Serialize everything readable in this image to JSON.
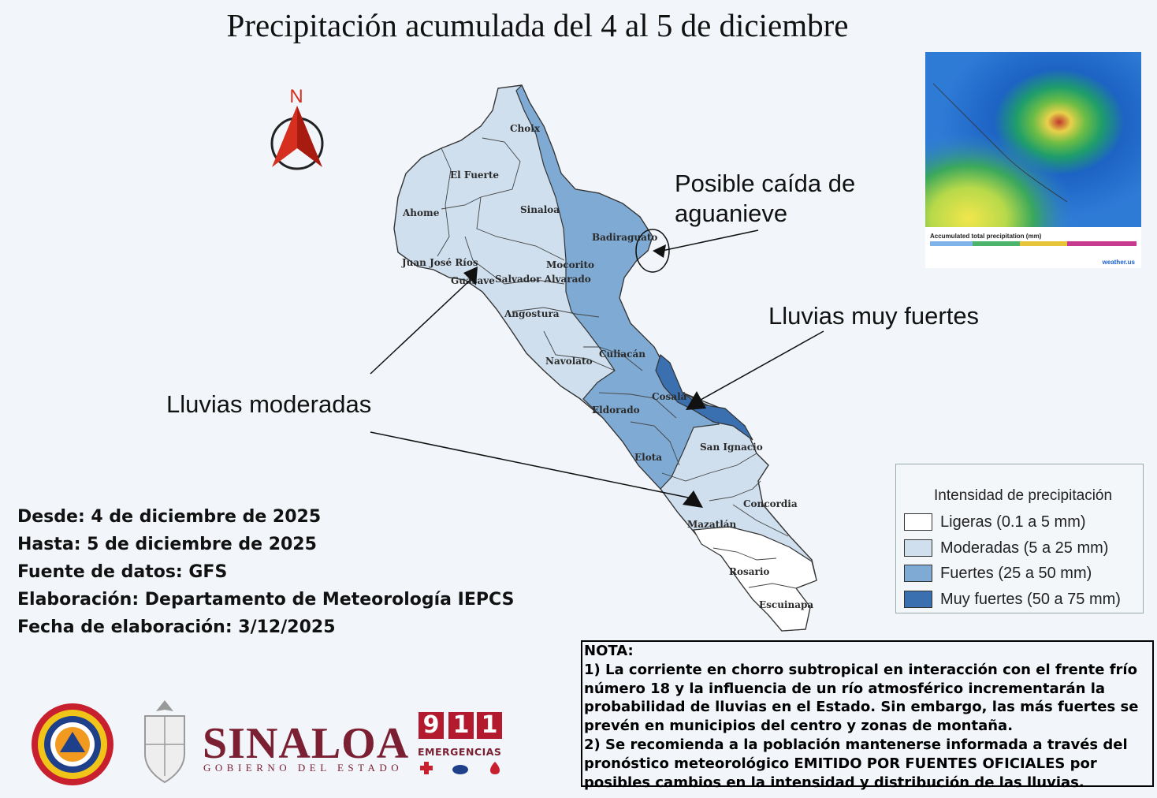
{
  "title": "Precipitación acumulada del 4 al 5 de diciembre",
  "north_label": "N",
  "callouts": {
    "aguanieve_line1": "Posible caída de",
    "aguanieve_line2": "aguanieve",
    "muy_fuertes": "Lluvias muy fuertes",
    "moderadas": "Lluvias moderadas"
  },
  "municipalities": [
    "Choix",
    "El Fuerte",
    "Ahome",
    "Sinaloa",
    "Badiraguato",
    "Juan José Ríos",
    "Mocorito",
    "Guasave",
    "Salvador Alvarado",
    "Angostura",
    "Culiacán",
    "Navolato",
    "Cosalá",
    "Eldorado",
    "Elota",
    "San Ignacio",
    "Concordia",
    "Mazatlán",
    "Rosario",
    "Escuinapa"
  ],
  "info": {
    "desde": "Desde: 4 de diciembre de 2025",
    "hasta": "Hasta: 5 de diciembre de 2025",
    "fuente": "Fuente de datos: GFS",
    "elaboracion": "Elaboración: Departamento de Meteorología IEPCS",
    "fecha": "Fecha de elaboración: 3/12/2025"
  },
  "legend": {
    "title": "Intensidad de precipitación",
    "items": [
      {
        "label": "Ligeras (0.1 a 5 mm)",
        "color": "#ffffff"
      },
      {
        "label": "Moderadas (5 a 25 mm)",
        "color": "#cfdfee"
      },
      {
        "label": "Fuertes (25 a 50 mm)",
        "color": "#7eaad3"
      },
      {
        "label": "Muy fuertes (50 a 75 mm)",
        "color": "#3b70b0"
      }
    ]
  },
  "note": {
    "heading": "NOTA:",
    "lines": [
      "1) La corriente en chorro subtropical en interacción con el frente frío",
      "número 18 y la influencia de un río atmosférico incrementarán la",
      "probabilidad de lluvias en el Estado. Sin embargo, las más fuertes se",
      "prevén en municipios del centro y zonas de montaña.",
      "2) Se recomienda a la población mantenerse informada a través del",
      "pronóstico meteorológico EMITIDO POR FUENTES OFICIALES por",
      "posibles cambios en la intensidad y distribución de las lluvias."
    ]
  },
  "inset": {
    "caption": "Accumulated total precipitation (mm)",
    "brand": "weather.us"
  },
  "logos": {
    "sinaloa": "SINALOA",
    "gobierno": "GOBIERNO DEL ESTADO",
    "emergency_digits": [
      "9",
      "1",
      "1"
    ],
    "emergency_label": "EMERGENCIAS"
  }
}
